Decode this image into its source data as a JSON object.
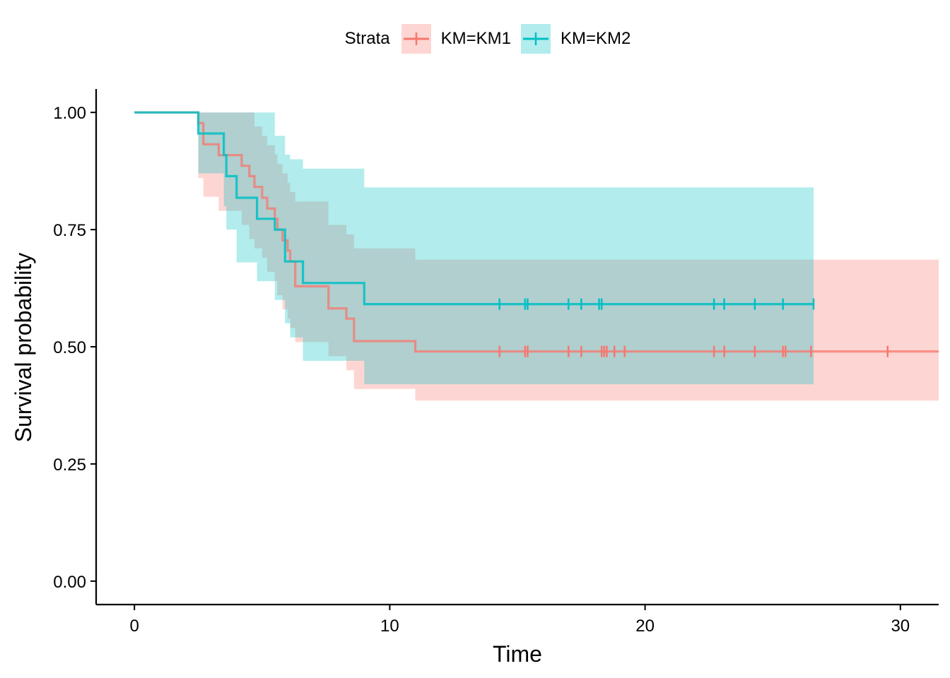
{
  "chart_data": {
    "type": "line",
    "title": "",
    "xlabel": "Time",
    "ylabel": "Survival probability",
    "xlim": [
      -1.5,
      31.5
    ],
    "ylim": [
      -0.05,
      1.05
    ],
    "x_ticks": [
      0,
      10,
      20,
      30
    ],
    "x_tick_labels": [
      "0",
      "10",
      "20",
      "30"
    ],
    "y_ticks": [
      0,
      0.25,
      0.5,
      0.75,
      1.0
    ],
    "y_tick_labels": [
      "0.00",
      "0.25",
      "0.50",
      "0.75",
      "1.00"
    ],
    "grid": false,
    "legend": {
      "position": "top",
      "title": "Strata",
      "entries": [
        "KM=KM1",
        "KM=KM2"
      ]
    },
    "series": [
      {
        "name": "KM=KM1",
        "color": "#F8766D",
        "step_x": [
          0,
          2.5,
          2.7,
          3.3,
          4.2,
          4.5,
          4.7,
          5.0,
          5.2,
          5.5,
          5.6,
          5.8,
          6.0,
          6.1,
          6.3,
          7.6,
          8.3,
          8.6,
          11.0,
          31.5
        ],
        "step_y": [
          1.0,
          0.977,
          0.932,
          0.909,
          0.886,
          0.864,
          0.841,
          0.818,
          0.795,
          0.773,
          0.75,
          0.727,
          0.705,
          0.682,
          0.629,
          0.582,
          0.56,
          0.512,
          0.49,
          0.49
        ],
        "ci_upper": [
          1.0,
          1.0,
          1.0,
          1.0,
          1.0,
          1.0,
          0.97,
          0.95,
          0.93,
          0.91,
          0.89,
          0.87,
          0.85,
          0.83,
          0.81,
          0.76,
          0.74,
          0.71,
          0.686,
          0.666
        ],
        "ci_lower": [
          1.0,
          0.86,
          0.82,
          0.79,
          0.76,
          0.73,
          0.71,
          0.69,
          0.66,
          0.64,
          0.61,
          0.58,
          0.56,
          0.54,
          0.51,
          0.48,
          0.45,
          0.41,
          0.385,
          0.362
        ],
        "censor_x": [
          14.3,
          15.3,
          15.4,
          17.0,
          17.5,
          18.3,
          18.4,
          18.5,
          18.8,
          19.2,
          22.7,
          23.1,
          24.3,
          25.4,
          25.5,
          26.5,
          29.5
        ],
        "censor_y": 0.49
      },
      {
        "name": "KM=KM2",
        "color": "#00BFC4",
        "step_x": [
          0,
          2.5,
          3.5,
          3.6,
          4.0,
          4.8,
          5.5,
          5.9,
          6.1,
          6.6,
          9.0,
          26.6
        ],
        "step_y": [
          1.0,
          0.955,
          0.909,
          0.864,
          0.818,
          0.773,
          0.75,
          0.682,
          0.682,
          0.636,
          0.591,
          0.591
        ],
        "ci_upper": [
          1.0,
          1.0,
          1.0,
          1.0,
          1.0,
          1.0,
          0.95,
          0.91,
          0.9,
          0.88,
          0.84,
          0.84
        ],
        "ci_lower": [
          1.0,
          0.87,
          0.8,
          0.75,
          0.68,
          0.64,
          0.6,
          0.55,
          0.52,
          0.47,
          0.42,
          0.42
        ],
        "censor_x": [
          14.3,
          15.3,
          15.4,
          17.0,
          17.5,
          18.2,
          18.3,
          22.7,
          23.1,
          24.3,
          25.4,
          26.6
        ],
        "censor_y": 0.591
      }
    ]
  }
}
